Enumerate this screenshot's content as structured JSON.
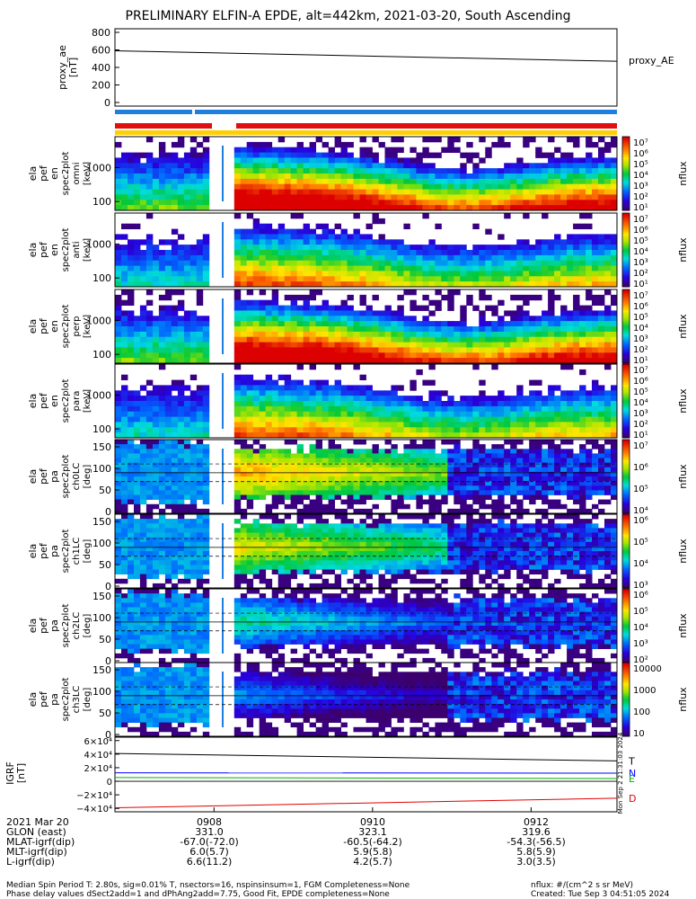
{
  "title": "PRELIMINARY ELFIN-A EPDE, alt=442km, 2021-03-20, South Ascending",
  "colors": {
    "bar_red": "#e01010",
    "bar_blue": "#1e7fe0",
    "bar_yellow": "#ffd000",
    "igrf_T": "#000000",
    "igrf_N": "#0000ff",
    "igrf_E": "#00b000",
    "igrf_D": "#e00000"
  },
  "proxy_ae": {
    "ylabel": [
      "proxy_ae",
      "[nT]"
    ],
    "ticks": [
      "800",
      "600",
      "400",
      "200",
      "0"
    ],
    "legend": "proxy_AE"
  },
  "spec_panels": [
    {
      "ylabel": [
        "ela",
        "pef",
        "en",
        "spec2plot",
        "omni",
        "[keV]"
      ],
      "ticks": [
        "1000",
        "100"
      ],
      "cb_ticks": [
        "10⁷",
        "10⁶",
        "10⁵",
        "10⁴",
        "10³",
        "10²",
        "10¹"
      ],
      "cb_label": "nflux"
    },
    {
      "ylabel": [
        "ela",
        "pef",
        "en",
        "spec2plot",
        "anti",
        "[keV]"
      ],
      "ticks": [
        "1000",
        "100"
      ],
      "cb_ticks": [
        "10⁷",
        "10⁶",
        "10⁵",
        "10⁴",
        "10³",
        "10²",
        "10¹"
      ],
      "cb_label": "nflux"
    },
    {
      "ylabel": [
        "ela",
        "pef",
        "en",
        "spec2plot",
        "perp",
        "[keV]"
      ],
      "ticks": [
        "1000",
        "100"
      ],
      "cb_ticks": [
        "10⁷",
        "10⁶",
        "10⁵",
        "10⁴",
        "10³",
        "10²",
        "10¹"
      ],
      "cb_label": "nflux"
    },
    {
      "ylabel": [
        "ela",
        "pef",
        "en",
        "spec2plot",
        "para",
        "[keV]"
      ],
      "ticks": [
        "1000",
        "100"
      ],
      "cb_ticks": [
        "10⁷",
        "10⁶",
        "10⁵",
        "10⁴",
        "10³",
        "10²",
        "10¹"
      ],
      "cb_label": "nflux"
    },
    {
      "ylabel": [
        "ela",
        "pef",
        "pa",
        "spec2plot",
        "ch0LC",
        "[deg]"
      ],
      "ticks": [
        "150",
        "100",
        "50",
        "0"
      ],
      "cb_ticks": [
        "10⁷",
        "10⁶",
        "10⁵",
        "10⁴"
      ],
      "cb_label": "nflux"
    },
    {
      "ylabel": [
        "ela",
        "pef",
        "pa",
        "spec2plot",
        "ch1LC",
        "[deg]"
      ],
      "ticks": [
        "150",
        "100",
        "50",
        "0"
      ],
      "cb_ticks": [
        "10⁶",
        "10⁵",
        "10⁴",
        "10³"
      ],
      "cb_label": "nflux"
    },
    {
      "ylabel": [
        "ela",
        "pef",
        "pa",
        "spec2plot",
        "ch2LC",
        "[deg]"
      ],
      "ticks": [
        "150",
        "100",
        "50",
        "0"
      ],
      "cb_ticks": [
        "10⁶",
        "10⁵",
        "10⁴",
        "10³",
        "10²"
      ],
      "cb_label": "nflux"
    },
    {
      "ylabel": [
        "ela",
        "pef",
        "pa",
        "spec2plot",
        "ch3LC",
        "[deg]"
      ],
      "ticks": [
        "150",
        "100",
        "50",
        "0"
      ],
      "cb_ticks": [
        "10000",
        "1000",
        "100",
        "10"
      ],
      "cb_label": "nflux"
    }
  ],
  "igrf": {
    "ylabel": [
      "IGRF",
      "[nT]"
    ],
    "ticks": [
      "6×10⁴",
      "4×10⁴",
      "2×10⁴",
      "0",
      "−2×10⁴",
      "−4×10⁴"
    ],
    "legend": [
      "T",
      "N",
      "E",
      "D"
    ]
  },
  "side_stamp": "Mon Sep  2 21:31:03 2024",
  "orbit": {
    "time_labels": [
      "0908",
      "0910",
      "0912"
    ],
    "rows": [
      {
        "label": "2021 Mar 20",
        "values": [
          "0908",
          "0910",
          "0912"
        ]
      },
      {
        "label": "GLON (east)",
        "values": [
          "331.0",
          "323.1",
          "319.6"
        ]
      },
      {
        "label": "MLAT-igrf(dip)",
        "values": [
          "-67.0(-72.0)",
          "-60.5(-64.2)",
          "-54.3(-56.5)"
        ]
      },
      {
        "label": "MLT-igrf(dip)",
        "values": [
          "6.0(5.7)",
          "5.9(5.8)",
          "5.8(5.9)"
        ]
      },
      {
        "label": "L-igrf(dip)",
        "values": [
          "6.6(11.2)",
          "4.2(5.7)",
          "3.0(3.5)"
        ]
      }
    ]
  },
  "footer": {
    "line1": "Median Spin Period T: 2.80s, sig=0.01% T, nsectors=16, nspinsinsum=1, FGM Completeness=None",
    "line2": "Phase delay values dSect2add=1 and dPhAng2add=7.75, Good Fit, EPDE completeness=None",
    "units": "nflux: #/(cm^2 s sr MeV)",
    "created": "Created: Tue Sep  3 04:51:05 2024"
  },
  "chart_data": [
    {
      "type": "line",
      "title": "proxy_AE",
      "x": [
        "09:06:45",
        "09:13:05"
      ],
      "series": [
        {
          "name": "proxy_AE",
          "values": [
            590,
            470
          ]
        }
      ],
      "ylim": [
        0,
        800
      ]
    },
    {
      "type": "heatmap",
      "title": "ela pef en spec2plot omni",
      "x_range": [
        "09:06:45",
        "09:13:05"
      ],
      "y_range_keV": [
        63,
        7000
      ],
      "z": "nflux",
      "zlim": [
        10,
        10000000
      ],
      "data_gap": [
        "09:08:00",
        "09:08:20"
      ]
    },
    {
      "type": "heatmap",
      "title": "ela pef en spec2plot anti",
      "x_range": [
        "09:06:45",
        "09:13:05"
      ],
      "y_range_keV": [
        63,
        7000
      ],
      "z": "nflux",
      "zlim": [
        10,
        10000000
      ]
    },
    {
      "type": "heatmap",
      "title": "ela pef en spec2plot perp",
      "x_range": [
        "09:06:45",
        "09:13:05"
      ],
      "y_range_keV": [
        63,
        7000
      ],
      "z": "nflux",
      "zlim": [
        10,
        10000000
      ]
    },
    {
      "type": "heatmap",
      "title": "ela pef en spec2plot para",
      "x_range": [
        "09:06:45",
        "09:13:05"
      ],
      "y_range_keV": [
        63,
        7000
      ],
      "z": "nflux",
      "zlim": [
        10,
        10000000
      ]
    },
    {
      "type": "heatmap",
      "title": "ela pef pa spec2plot ch0LC",
      "x_range": [
        "09:06:45",
        "09:13:05"
      ],
      "y_range_deg": [
        0,
        180
      ],
      "z": "nflux",
      "zlim": [
        10000,
        10000000
      ]
    },
    {
      "type": "heatmap",
      "title": "ela pef pa spec2plot ch1LC",
      "x_range": [
        "09:06:45",
        "09:13:05"
      ],
      "y_range_deg": [
        0,
        180
      ],
      "z": "nflux",
      "zlim": [
        1000,
        1000000
      ]
    },
    {
      "type": "heatmap",
      "title": "ela pef pa spec2plot ch2LC",
      "x_range": [
        "09:06:45",
        "09:13:05"
      ],
      "y_range_deg": [
        0,
        180
      ],
      "z": "nflux",
      "zlim": [
        100,
        1000000
      ]
    },
    {
      "type": "heatmap",
      "title": "ela pef pa spec2plot ch3LC",
      "x_range": [
        "09:06:45",
        "09:13:05"
      ],
      "y_range_deg": [
        0,
        180
      ],
      "z": "nflux",
      "zlim": [
        10,
        10000
      ]
    },
    {
      "type": "line",
      "title": "IGRF",
      "x": [
        "09:06:45",
        "09:13:05"
      ],
      "series": [
        {
          "name": "T",
          "values": [
            41000,
            30000
          ]
        },
        {
          "name": "N",
          "values": [
            12500,
            12000
          ]
        },
        {
          "name": "E",
          "values": [
            5500,
            4000
          ]
        },
        {
          "name": "D",
          "values": [
            -39000,
            -25000
          ]
        }
      ],
      "ylim": [
        -45000,
        65000
      ]
    }
  ]
}
